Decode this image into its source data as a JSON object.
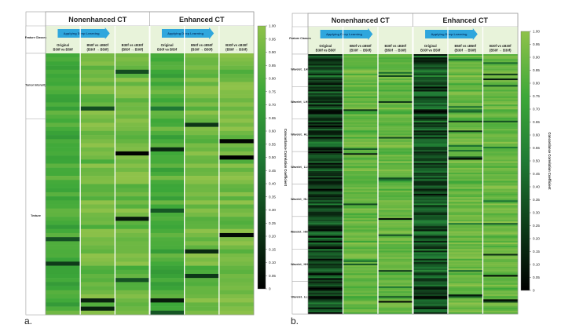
{
  "chart_data": [
    {
      "type": "heatmap",
      "panel_label": "a.",
      "group_headers": [
        "Nonenhanced CT",
        "Enhanced CT"
      ],
      "row_header_label": "Feature Classes",
      "arrow_label": "Applying Deep Learning",
      "columns": [
        {
          "group": "Nonenhanced CT",
          "line1": "Original",
          "line2": "B30f vs B50f"
        },
        {
          "group": "Nonenhanced CT",
          "line1": "B50f vs cB50f",
          "line2": "(B30f → B50f)"
        },
        {
          "group": "Nonenhanced CT",
          "line1": "B30f vs cB30f",
          "line2": "(B50f → B30f)"
        },
        {
          "group": "Enhanced CT",
          "line1": "Original",
          "line2": "B30f vs B50f"
        },
        {
          "group": "Enhanced CT",
          "line1": "B50f vs cB50f",
          "line2": "(B30f → B50f)"
        },
        {
          "group": "Enhanced CT",
          "line1": "B30f vs cB30f",
          "line2": "(B50f → B30f)"
        }
      ],
      "feature_classes": [
        {
          "name": "Tumor Intensity",
          "rows": 16
        },
        {
          "name": "Texture",
          "rows": 48
        }
      ],
      "column_mean_ccc": [
        0.7,
        0.88,
        0.88,
        0.72,
        0.88,
        0.89
      ],
      "colorbar": {
        "label": "Concordance Correlation Coefficient",
        "range": [
          0,
          1.0
        ],
        "ticks": [
          "1.00",
          "0.95",
          "0.90",
          "0.85",
          "0.80",
          "0.75",
          "0.70",
          "0.65",
          "0.60",
          "0.55",
          "0.50",
          "0.45",
          "0.40",
          "0.35",
          "0.30",
          "0.25",
          "0.20",
          "0.15",
          "0.10",
          "0.05",
          "0"
        ],
        "colors": [
          "#000000",
          "#1f7a34",
          "#3da839",
          "#8fc24a"
        ]
      }
    },
    {
      "type": "heatmap",
      "panel_label": "b.",
      "group_headers": [
        "Nonenhanced CT",
        "Enhanced CT"
      ],
      "row_header_label": "Feature Classes",
      "arrow_label": "Applying Deep Learning",
      "columns": [
        {
          "group": "Nonenhanced CT",
          "line1": "Original",
          "line2": "B30f vs B50f"
        },
        {
          "group": "Nonenhanced CT",
          "line1": "B50f vs cB50f",
          "line2": "(B30f → B50f)"
        },
        {
          "group": "Nonenhanced CT",
          "line1": "B30f vs cB30f",
          "line2": "(B50f → B30f)"
        },
        {
          "group": "Enhanced CT",
          "line1": "Original",
          "line2": "B30f vs B50f"
        },
        {
          "group": "Enhanced CT",
          "line1": "B50f vs cB50f",
          "line2": "(B30f → B50f)"
        },
        {
          "group": "Enhanced CT",
          "line1": "B30f vs cB30f",
          "line2": "(B50f → B30f)"
        }
      ],
      "feature_classes": [
        {
          "name": "Wavelet_ LHL",
          "rows": 20
        },
        {
          "name": "Wavelet_ LHH",
          "rows": 20
        },
        {
          "name": "Wavelet_ HLL",
          "rows": 20
        },
        {
          "name": "Wavelet_ LLH",
          "rows": 20
        },
        {
          "name": "Wavelet_ HLH",
          "rows": 20
        },
        {
          "name": "Wavelet_ HHH",
          "rows": 20
        },
        {
          "name": "Wavelet_ HHL",
          "rows": 20
        },
        {
          "name": "Wavelet_ LLL",
          "rows": 20
        }
      ],
      "column_mean_ccc": [
        0.18,
        0.82,
        0.84,
        0.22,
        0.85,
        0.85
      ],
      "colorbar": {
        "label": "Concordance Correlation Coefficient",
        "range": [
          0,
          1.0
        ],
        "ticks": [
          "1.00",
          "0.95",
          "0.90",
          "0.85",
          "0.80",
          "0.75",
          "0.70",
          "0.65",
          "0.60",
          "0.55",
          "0.50",
          "0.45",
          "0.40",
          "0.35",
          "0.30",
          "0.25",
          "0.20",
          "0.15",
          "0.10",
          "0.05",
          "0"
        ],
        "colors": [
          "#000000",
          "#1f7a34",
          "#3da839",
          "#8fc24a"
        ]
      }
    }
  ]
}
